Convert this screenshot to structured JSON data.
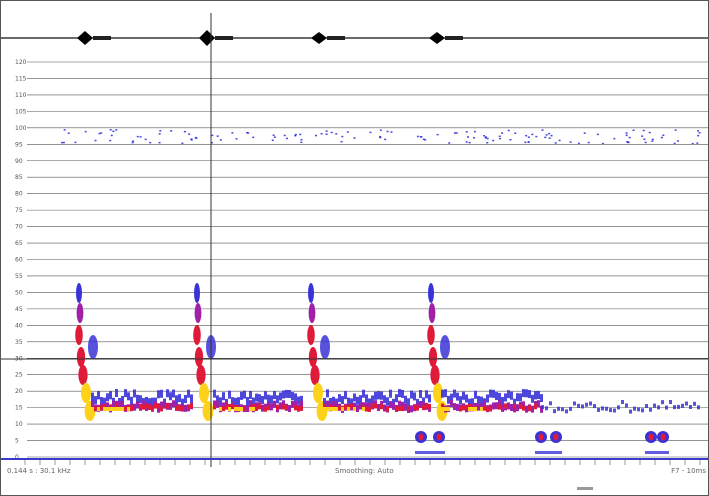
{
  "y_axis": {
    "ticks": [
      "120",
      "115",
      "110",
      "105",
      "100",
      "95",
      "90",
      "85",
      "80",
      "75",
      "70",
      "65",
      "60",
      "55",
      "50",
      "45",
      "40",
      "35",
      "30",
      "25",
      "20",
      "15",
      "10",
      "5",
      "0"
    ]
  },
  "status": {
    "left": "0.144 s : 30.1 kHz",
    "center": "Smoothing: Auto",
    "right": "F7 - 10ms"
  },
  "colors": {
    "gridline": "#555555",
    "baseline": "#3a3ad0",
    "noise": "#1a1ad8",
    "low": "#3a33d8",
    "mid": "#a020a8",
    "high": "#e01b3a",
    "peak": "#ffd21a"
  },
  "cursor": {
    "type": "crosshair"
  }
}
